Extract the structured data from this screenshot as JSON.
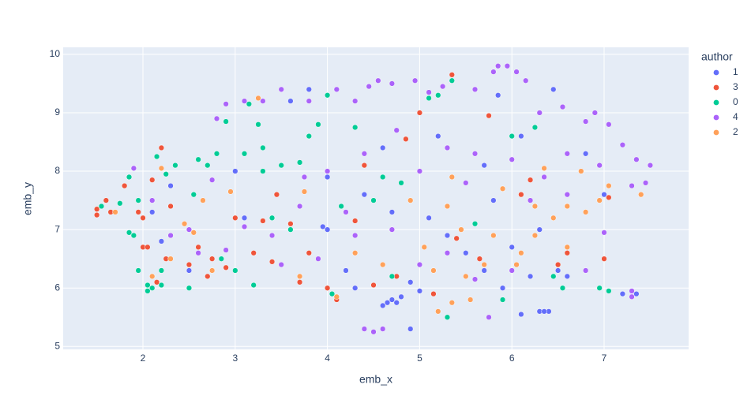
{
  "chart_data": {
    "type": "scatter",
    "x_label": "emb_x",
    "y_label": "emb_y",
    "legend_title": "author",
    "legend_position": "right",
    "grid": true,
    "xlim": [
      1.135,
      7.916
    ],
    "ylim": [
      4.95,
      10.12
    ],
    "xticks": [
      2,
      3,
      4,
      5,
      6,
      7
    ],
    "yticks": [
      5,
      6,
      7,
      8,
      9,
      10
    ],
    "series": [
      {
        "name": "1",
        "color": "#636efa",
        "x": [
          4.6,
          4.65,
          4.7,
          4.75,
          4.8,
          4.9,
          6.1,
          6.3,
          6.4,
          6.35,
          7.3,
          7.35,
          7.2,
          6.45,
          5.85,
          2.3,
          2.1,
          3.1,
          3.0,
          3.6,
          3.8,
          4.0,
          4.0,
          3.95,
          4.3,
          4.9,
          5.0,
          5.3,
          5.5,
          5.7,
          5.9,
          6.2,
          6.5,
          6.6,
          7.0,
          6.8,
          6.1,
          5.7,
          5.2,
          4.6,
          4.4,
          4.7,
          5.8,
          6.3,
          3.3,
          2.5,
          2.2,
          4.2,
          5.1,
          6.0
        ],
        "values": [
          5.7,
          5.75,
          5.8,
          5.75,
          5.85,
          5.3,
          5.55,
          5.6,
          5.6,
          5.6,
          5.85,
          5.9,
          5.9,
          9.4,
          9.3,
          7.75,
          7.3,
          7.2,
          8.0,
          9.2,
          9.4,
          7.9,
          7.0,
          7.05,
          6.0,
          6.1,
          5.95,
          6.9,
          6.6,
          6.3,
          6.0,
          6.2,
          6.3,
          6.2,
          7.6,
          8.3,
          8.6,
          8.1,
          8.6,
          8.4,
          7.6,
          7.3,
          7.5,
          7.0,
          8.0,
          6.3,
          6.8,
          6.3,
          7.2,
          6.7
        ]
      },
      {
        "name": "3",
        "color": "#ef553b",
        "x": [
          1.5,
          1.5,
          1.6,
          1.65,
          1.8,
          1.95,
          2.0,
          2.0,
          2.05,
          2.1,
          2.2,
          2.25,
          2.15,
          2.3,
          2.5,
          2.6,
          2.7,
          2.75,
          2.9,
          3.2,
          3.4,
          3.45,
          3.6,
          3.8,
          4.0,
          4.1,
          4.3,
          4.5,
          4.75,
          4.85,
          5.0,
          5.15,
          5.35,
          5.4,
          5.65,
          5.75,
          6.1,
          6.2,
          6.5,
          6.6,
          7.0,
          7.05,
          3.3,
          3.7,
          4.4,
          3.0
        ],
        "values": [
          7.25,
          7.35,
          7.5,
          7.3,
          7.75,
          7.3,
          7.2,
          6.7,
          6.7,
          7.85,
          8.4,
          6.5,
          6.1,
          7.4,
          6.4,
          6.7,
          6.2,
          6.5,
          6.35,
          6.6,
          6.45,
          7.6,
          7.1,
          6.6,
          6.0,
          5.8,
          7.15,
          6.05,
          6.2,
          8.55,
          9.0,
          5.9,
          9.65,
          6.85,
          6.5,
          8.95,
          7.6,
          7.85,
          6.4,
          6.6,
          6.5,
          7.55,
          7.15,
          6.1,
          8.1,
          7.2
        ]
      },
      {
        "name": "0",
        "color": "#00cc96",
        "x": [
          1.55,
          1.75,
          1.85,
          1.9,
          1.85,
          1.95,
          2.05,
          2.05,
          2.1,
          2.2,
          2.2,
          2.25,
          2.35,
          2.5,
          2.55,
          2.6,
          2.7,
          2.8,
          2.85,
          2.9,
          3.0,
          3.1,
          3.15,
          3.25,
          3.3,
          3.3,
          3.4,
          3.5,
          3.6,
          3.7,
          3.8,
          3.9,
          4.0,
          4.05,
          4.15,
          4.3,
          4.5,
          4.6,
          4.8,
          5.1,
          5.2,
          5.35,
          5.6,
          5.9,
          6.0,
          6.25,
          6.45,
          6.55,
          6.95,
          7.05,
          5.3,
          4.7,
          3.2,
          2.15,
          1.95
        ],
        "values": [
          7.4,
          7.45,
          6.95,
          6.9,
          7.9,
          6.3,
          6.05,
          5.95,
          6.0,
          6.05,
          6.3,
          7.95,
          8.1,
          6.0,
          7.6,
          8.2,
          8.1,
          8.3,
          6.5,
          8.85,
          6.3,
          8.3,
          9.15,
          8.8,
          8.4,
          8.0,
          7.2,
          8.1,
          7.0,
          8.15,
          8.6,
          8.8,
          9.3,
          5.9,
          7.4,
          8.75,
          7.5,
          7.9,
          7.8,
          9.25,
          9.3,
          9.55,
          7.1,
          5.8,
          8.6,
          8.75,
          6.2,
          6.0,
          6.0,
          5.95,
          5.5,
          6.2,
          6.05,
          8.25,
          7.5
        ]
      },
      {
        "name": "4",
        "color": "#ab63fa",
        "x": [
          1.9,
          2.1,
          2.3,
          2.6,
          2.8,
          2.9,
          3.1,
          3.3,
          3.5,
          3.8,
          4.1,
          4.3,
          4.45,
          4.55,
          4.7,
          4.95,
          5.1,
          5.25,
          5.6,
          5.8,
          5.85,
          5.95,
          6.05,
          6.15,
          6.3,
          6.55,
          6.8,
          6.9,
          7.05,
          7.2,
          7.35,
          7.5,
          7.45,
          7.3,
          6.95,
          6.6,
          6.35,
          6.0,
          5.6,
          5.3,
          5.0,
          4.75,
          4.4,
          4.0,
          3.7,
          3.4,
          3.1,
          2.9,
          3.5,
          3.9,
          4.3,
          4.7,
          5.0,
          5.3,
          5.6,
          5.75,
          6.0,
          6.8,
          7.0,
          7.3,
          7.3,
          4.4,
          4.5,
          4.6,
          2.75,
          3.75,
          5.5,
          6.2,
          6.6,
          4.2,
          2.5
        ],
        "values": [
          8.05,
          7.5,
          6.9,
          6.6,
          8.9,
          9.15,
          9.2,
          9.2,
          9.4,
          9.2,
          9.4,
          9.2,
          9.45,
          9.55,
          9.5,
          9.55,
          9.35,
          9.45,
          9.4,
          9.7,
          9.8,
          9.8,
          9.7,
          9.55,
          9.0,
          9.1,
          8.85,
          9.0,
          8.8,
          8.45,
          8.2,
          8.1,
          7.8,
          7.75,
          8.1,
          8.3,
          7.9,
          8.2,
          8.3,
          8.4,
          8.0,
          8.7,
          8.3,
          8.0,
          7.4,
          6.9,
          7.05,
          6.65,
          6.4,
          6.5,
          6.9,
          7.0,
          6.4,
          6.6,
          6.15,
          5.5,
          6.3,
          6.3,
          6.95,
          5.95,
          5.85,
          5.3,
          5.25,
          5.3,
          7.85,
          7.9,
          7.8,
          7.5,
          7.6,
          7.3,
          7.0
        ]
      },
      {
        "name": "2",
        "color": "#ffa15a",
        "x": [
          1.7,
          2.2,
          2.3,
          2.45,
          2.65,
          2.55,
          2.75,
          2.95,
          3.25,
          3.7,
          3.75,
          4.1,
          4.3,
          4.6,
          4.9,
          5.05,
          5.15,
          5.3,
          5.35,
          5.45,
          5.5,
          5.55,
          5.7,
          5.8,
          5.9,
          6.05,
          6.1,
          6.25,
          6.35,
          6.45,
          6.6,
          6.6,
          6.75,
          6.8,
          6.95,
          7.05,
          7.4,
          5.2,
          5.35,
          6.25,
          2.1
        ],
        "values": [
          7.3,
          8.05,
          6.5,
          7.1,
          7.5,
          6.95,
          6.3,
          7.65,
          9.25,
          6.2,
          7.65,
          5.85,
          6.6,
          6.4,
          7.5,
          6.7,
          6.3,
          7.4,
          7.9,
          7.0,
          6.2,
          5.8,
          6.4,
          6.9,
          7.7,
          6.4,
          6.6,
          7.4,
          8.05,
          7.2,
          6.7,
          7.4,
          8.0,
          7.3,
          7.5,
          7.75,
          7.6,
          5.6,
          5.75,
          6.9,
          6.2
        ]
      }
    ]
  }
}
